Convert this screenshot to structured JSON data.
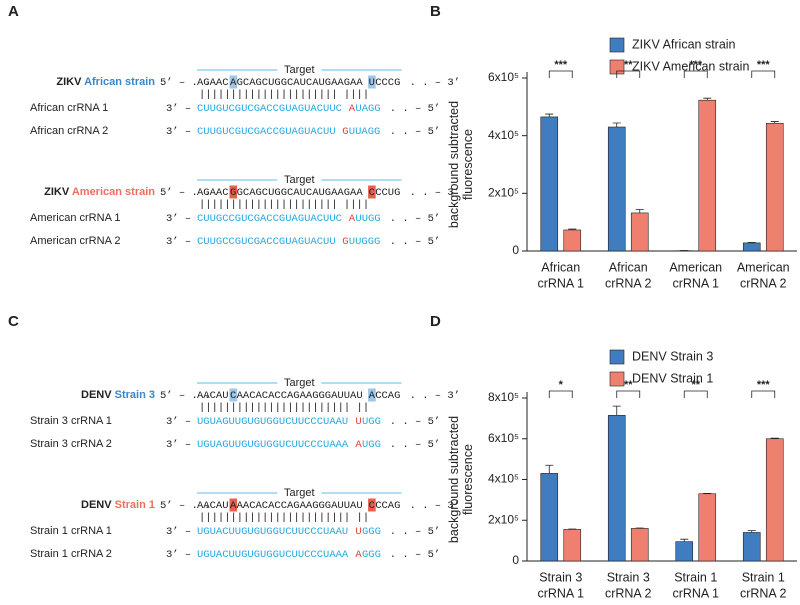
{
  "sequence_panels": [
    {
      "label": "A",
      "guide_color": "#27a9e1",
      "mismatch_color": "#e8403a",
      "target_color": "#27a9e1",
      "blocks": [
        {
          "target_label": "Target",
          "virus": "ZIKV",
          "strain": "African strain",
          "strain_color": "#3a86c8",
          "box_color": "#9cc6ea",
          "target": {
            "lead": "5’ – . .",
            "segments": [
              {
                "text": "AGAAC",
                "style": "plain"
              },
              {
                "text": "A",
                "style": "boxed"
              },
              {
                "text": "GCAGCUGGCAUCAUGAAGAA",
                "style": "plain"
              },
              {
                "text": "U",
                "style": "boxed"
              },
              {
                "text": "CCCG",
                "style": "plain"
              }
            ],
            "tail": ". . – 3’"
          },
          "pairs": "|||||||||||||||||||||| ||||",
          "guides": [
            {
              "name": "African crRNA 1",
              "lead": "3’ –",
              "segments": [
                {
                  "text": "CUUGUCGUCGACCGUAGUACUUC",
                  "style": "guide"
                },
                {
                  "text": "A",
                  "style": "mismatch"
                },
                {
                  "text": "UAGG",
                  "style": "guide"
                }
              ],
              "tail": ". . – 5’"
            },
            {
              "name": "African crRNA 2",
              "lead": "3’ –",
              "segments": [
                {
                  "text": "CUUGUCGUCGACCGUAGUACUU",
                  "style": "guide"
                },
                {
                  "text": "G",
                  "style": "mismatch"
                },
                {
                  "text": "UUAGG",
                  "style": "guide"
                }
              ],
              "tail": ". . – 5’"
            }
          ]
        },
        {
          "target_label": "Target",
          "virus": "ZIKV",
          "strain": "American strain",
          "strain_color": "#ec6f5b",
          "box_color": "#e8604d",
          "target": {
            "lead": "5’ – . .",
            "segments": [
              {
                "text": "AGAAC",
                "style": "plain"
              },
              {
                "text": "G",
                "style": "boxed"
              },
              {
                "text": "GCAGCUGGCAUCAUGAAGAA",
                "style": "plain"
              },
              {
                "text": "C",
                "style": "boxed"
              },
              {
                "text": "CCUG",
                "style": "plain"
              }
            ],
            "tail": ". . – 3’"
          },
          "pairs": "|||||||||||||||||||||| ||||",
          "guides": [
            {
              "name": "American crRNA 1",
              "lead": "3’ –",
              "segments": [
                {
                  "text": "CUUGCCGUCGACCGUAGUACUUC",
                  "style": "guide"
                },
                {
                  "text": "A",
                  "style": "mismatch"
                },
                {
                  "text": "UUGG",
                  "style": "guide"
                }
              ],
              "tail": ". . – 5’"
            },
            {
              "name": "American crRNA 2",
              "lead": "3’ –",
              "segments": [
                {
                  "text": "CUUGCCGUCGACCGUAGUACUU",
                  "style": "guide"
                },
                {
                  "text": "G",
                  "style": "mismatch"
                },
                {
                  "text": "UUGGG",
                  "style": "guide"
                }
              ],
              "tail": ". . – 5’"
            }
          ]
        }
      ]
    },
    {
      "label": "C",
      "guide_color": "#27a9e1",
      "mismatch_color": "#e8403a",
      "target_color": "#27a9e1",
      "blocks": [
        {
          "target_label": "Target",
          "virus": "DENV",
          "strain": "Strain 3",
          "strain_color": "#3a86c8",
          "box_color": "#9cc6ea",
          "target": {
            "lead": "5’ – . .",
            "segments": [
              {
                "text": "AACAU",
                "style": "plain"
              },
              {
                "text": "C",
                "style": "boxed"
              },
              {
                "text": "AACACACCAGAAGGGAUUAU",
                "style": "plain"
              },
              {
                "text": "A",
                "style": "boxed"
              },
              {
                "text": "CCAG",
                "style": "plain"
              }
            ],
            "tail": ". . – 3’"
          },
          "pairs": "|||||||||||||||||||||||| ||",
          "guides": [
            {
              "name": "Strain 3 crRNA 1",
              "lead": "3’ –",
              "segments": [
                {
                  "text": "UGUAGUUGUGUGGUCUUCCCUAAU",
                  "style": "guide"
                },
                {
                  "text": "U",
                  "style": "mismatch"
                },
                {
                  "text": "UGG",
                  "style": "guide"
                }
              ],
              "tail": ". . – 5’"
            },
            {
              "name": "Strain 3 crRNA 2",
              "lead": "3’ –",
              "segments": [
                {
                  "text": "UGUAGUUGUGUGGUCUUCCCUAAA",
                  "style": "guide"
                },
                {
                  "text": "A",
                  "style": "mismatch"
                },
                {
                  "text": "UGG",
                  "style": "guide"
                }
              ],
              "tail": ". . – 5’"
            }
          ]
        },
        {
          "target_label": "Target",
          "virus": "DENV",
          "strain": "Strain 1",
          "strain_color": "#ec6f5b",
          "box_color": "#e8604d",
          "target": {
            "lead": "5’ – . .",
            "segments": [
              {
                "text": "AACAU",
                "style": "plain"
              },
              {
                "text": "A",
                "style": "boxed"
              },
              {
                "text": "AACACACCAGAAGGGAUUAU",
                "style": "plain"
              },
              {
                "text": "C",
                "style": "boxed"
              },
              {
                "text": "CCAG",
                "style": "plain"
              }
            ],
            "tail": ". . – 3’"
          },
          "pairs": "|||||||||||||||||||||||| ||",
          "guides": [
            {
              "name": "Strain 1 crRNA 1",
              "lead": "3’ –",
              "segments": [
                {
                  "text": "UGUACUUGUGUGGUCUUCCCUAAU",
                  "style": "guide"
                },
                {
                  "text": "U",
                  "style": "mismatch"
                },
                {
                  "text": "GGG",
                  "style": "guide"
                }
              ],
              "tail": ". . – 5’"
            },
            {
              "name": "Strain 1 crRNA 2",
              "lead": "3’ –",
              "segments": [
                {
                  "text": "UGUACUUGUGUGGUCUUCCCUAAA",
                  "style": "guide"
                },
                {
                  "text": "A",
                  "style": "mismatch"
                },
                {
                  "text": "GGG",
                  "style": "guide"
                }
              ],
              "tail": ". . – 5’"
            }
          ]
        }
      ]
    }
  ],
  "chart_data": [
    {
      "type": "bar",
      "panel_label": "B",
      "ylabel": [
        "background subtracted",
        "fluorescence"
      ],
      "categories": [
        [
          "African",
          "crRNA 1"
        ],
        [
          "African",
          "crRNA 2"
        ],
        [
          "American",
          "crRNA 1"
        ],
        [
          "American",
          "crRNA 2"
        ]
      ],
      "series": [
        {
          "name": "ZIKV African strain",
          "color": "#3f7dc0",
          "values": [
            465000,
            430000,
            1000,
            28000
          ],
          "errors": [
            10000,
            14000,
            500,
            2000
          ]
        },
        {
          "name": "ZIKV American strain",
          "color": "#ef806f",
          "values": [
            73000,
            132000,
            523000,
            443000
          ],
          "errors": [
            3000,
            12000,
            7000,
            6000
          ]
        }
      ],
      "significance": [
        "***",
        "**",
        "***",
        "***"
      ],
      "ylim": [
        0,
        600000
      ],
      "yticks": [
        0,
        {
          "value": 200000,
          "label": "2x10⁵"
        },
        {
          "value": 400000,
          "label": "4x10⁵"
        },
        {
          "value": 600000,
          "label": "6x10⁵"
        }
      ]
    },
    {
      "type": "bar",
      "panel_label": "D",
      "ylabel": [
        "background subtracted",
        "fluorescence"
      ],
      "categories": [
        [
          "Strain 3",
          "crRNA 1"
        ],
        [
          "Strain 3",
          "crRNA 2"
        ],
        [
          "Strain 1",
          "crRNA 1"
        ],
        [
          "Strain 1",
          "crRNA 2"
        ]
      ],
      "series": [
        {
          "name": "DENV Strain 3",
          "color": "#3f7dc0",
          "values": [
            430000,
            715000,
            95000,
            140000
          ],
          "errors": [
            40000,
            45000,
            12000,
            9000
          ]
        },
        {
          "name": "DENV Strain 1",
          "color": "#ef806f",
          "values": [
            155000,
            160000,
            330000,
            600000
          ],
          "errors": [
            2000,
            2000,
            2000,
            3000
          ]
        }
      ],
      "significance": [
        "*",
        "**",
        "**",
        "***"
      ],
      "ylim": [
        0,
        800000
      ],
      "yticks": [
        0,
        {
          "value": 200000,
          "label": "2x10⁵"
        },
        {
          "value": 400000,
          "label": "4x10⁵"
        },
        {
          "value": 600000,
          "label": "6x10⁵"
        },
        {
          "value": 800000,
          "label": "8x10⁵"
        }
      ]
    }
  ]
}
